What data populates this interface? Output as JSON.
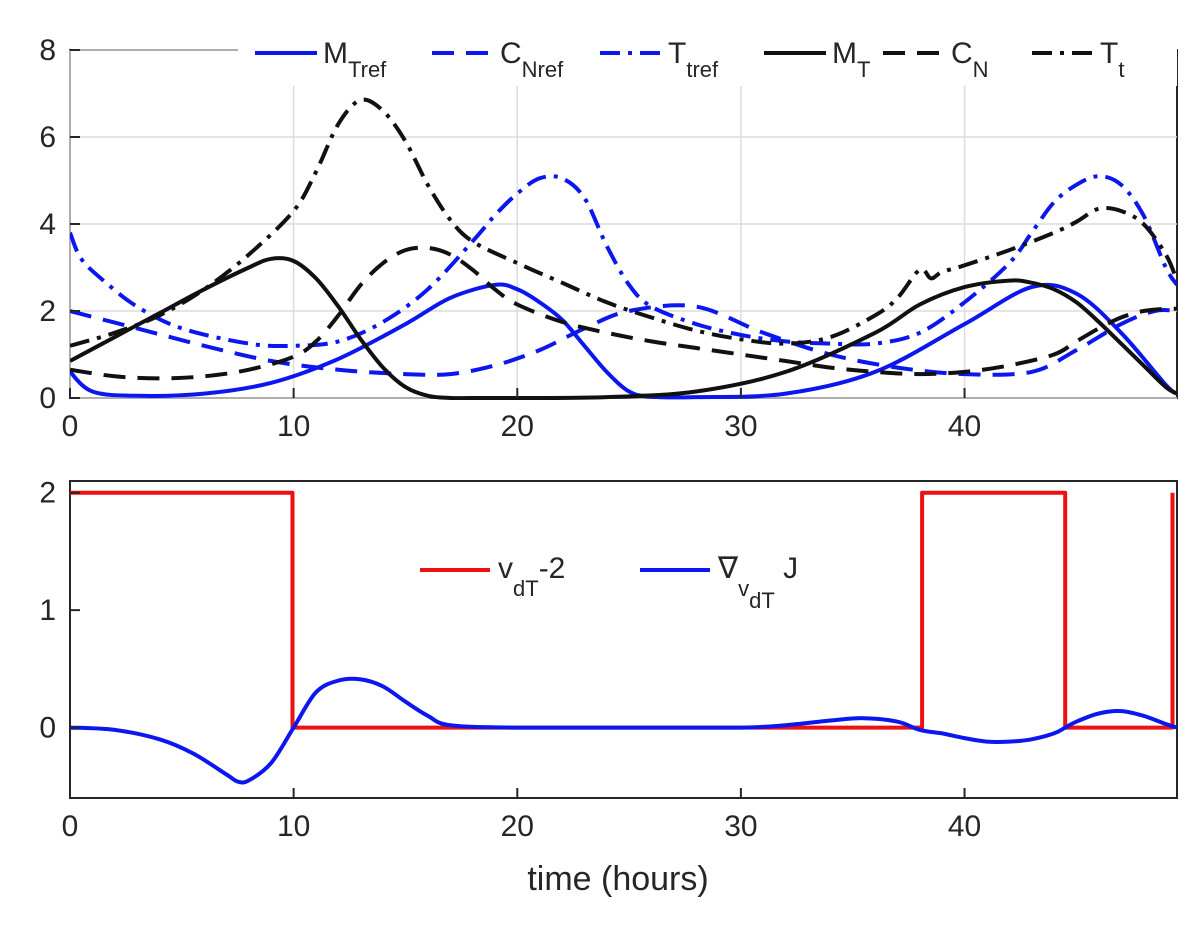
{
  "chart_data": [
    {
      "type": "line",
      "xlim": [
        0,
        49.5
      ],
      "ylim": [
        0,
        8
      ],
      "xticks": [
        0,
        10,
        20,
        30,
        40
      ],
      "yticks": [
        0,
        2,
        4,
        6,
        8
      ],
      "grid": true,
      "legend_placement": "top",
      "series": [
        {
          "name": "M",
          "sub": "Tref",
          "color": "#0b17ee",
          "dash": "solid",
          "x": [
            0,
            1,
            3,
            6,
            9,
            12,
            15,
            17,
            19,
            20,
            21,
            22,
            23,
            24,
            25,
            26,
            28,
            32,
            36,
            40,
            43,
            45,
            47,
            49,
            49.5
          ],
          "y": [
            0.6,
            0.15,
            0.05,
            0.1,
            0.35,
            0.9,
            1.7,
            2.3,
            2.6,
            2.5,
            2.2,
            1.8,
            1.2,
            0.6,
            0.15,
            0.03,
            0.02,
            0.1,
            0.6,
            1.7,
            2.55,
            2.4,
            1.5,
            0.3,
            0.1
          ]
        },
        {
          "name": "C",
          "sub": "Nref",
          "color": "#0b17ee",
          "dash": "dash",
          "x": [
            0,
            3,
            6,
            9,
            12,
            15,
            17,
            19,
            21,
            23,
            25,
            28,
            31,
            34,
            37,
            40,
            43,
            45,
            47,
            48.5,
            49.5
          ],
          "y": [
            2.0,
            1.6,
            1.2,
            0.85,
            0.65,
            0.55,
            0.55,
            0.75,
            1.1,
            1.6,
            2.0,
            2.1,
            1.5,
            1.0,
            0.7,
            0.55,
            0.6,
            1.1,
            1.7,
            2.0,
            2.0
          ]
        },
        {
          "name": "T",
          "sub": "tref",
          "color": "#0b17ee",
          "dash": "dashdot",
          "x": [
            0,
            0.5,
            1.5,
            3,
            5,
            8,
            10,
            12,
            14,
            16,
            18,
            19,
            20,
            21,
            22,
            23,
            24,
            25,
            26,
            28,
            30,
            32,
            34,
            36,
            38,
            40,
            42,
            43,
            44,
            45,
            46,
            47,
            48,
            49,
            49.5
          ],
          "y": [
            3.8,
            3.2,
            2.7,
            2.1,
            1.6,
            1.25,
            1.2,
            1.3,
            1.75,
            2.5,
            3.6,
            4.2,
            4.7,
            5.05,
            5.05,
            4.6,
            3.5,
            2.6,
            2.1,
            1.7,
            1.45,
            1.3,
            1.25,
            1.25,
            1.5,
            2.2,
            3.1,
            3.8,
            4.5,
            4.9,
            5.1,
            4.9,
            4.2,
            3.0,
            2.6
          ]
        },
        {
          "name": "M",
          "sub": "T",
          "color": "#111111",
          "dash": "solid",
          "x": [
            0,
            2,
            4,
            6,
            8,
            9,
            10,
            11,
            12,
            13,
            14,
            15,
            16,
            17,
            18,
            20,
            24,
            28,
            32,
            36,
            38,
            40,
            42,
            43,
            44,
            45,
            46,
            47,
            48,
            49,
            49.5
          ],
          "y": [
            0.85,
            1.4,
            1.95,
            2.5,
            3.0,
            3.2,
            3.15,
            2.75,
            2.1,
            1.35,
            0.7,
            0.25,
            0.05,
            0.0,
            0.0,
            0.0,
            0.02,
            0.15,
            0.6,
            1.5,
            2.15,
            2.55,
            2.7,
            2.65,
            2.5,
            2.2,
            1.75,
            1.25,
            0.75,
            0.25,
            0.1
          ]
        },
        {
          "name": "C",
          "sub": "N",
          "color": "#111111",
          "dash": "dash",
          "x": [
            0,
            2,
            4,
            6,
            8,
            10,
            11,
            12,
            13,
            14,
            15,
            16,
            17,
            18,
            19,
            20,
            22,
            24,
            26,
            28,
            30,
            32,
            34,
            36,
            38,
            40,
            42,
            44,
            45,
            46,
            47,
            48,
            49,
            49.5
          ],
          "y": [
            0.65,
            0.5,
            0.45,
            0.5,
            0.65,
            0.95,
            1.3,
            1.9,
            2.6,
            3.1,
            3.4,
            3.45,
            3.3,
            2.95,
            2.5,
            2.15,
            1.75,
            1.5,
            1.3,
            1.15,
            1.0,
            0.85,
            0.7,
            0.6,
            0.55,
            0.6,
            0.75,
            1.0,
            1.3,
            1.6,
            1.85,
            2.0,
            2.05,
            2.05
          ]
        },
        {
          "name": "T",
          "sub": "t",
          "color": "#111111",
          "dash": "dashdot",
          "x": [
            0,
            2,
            4,
            6,
            8,
            10,
            11,
            12,
            13,
            14,
            15,
            16,
            17,
            18,
            20,
            22,
            24,
            26,
            28,
            30,
            32,
            34,
            36,
            37,
            38,
            38.5,
            39,
            40,
            42,
            44,
            45,
            46,
            47,
            48,
            49,
            49.5
          ],
          "y": [
            1.2,
            1.5,
            1.9,
            2.5,
            3.3,
            4.3,
            5.2,
            6.3,
            6.85,
            6.6,
            5.9,
            4.9,
            4.1,
            3.6,
            3.1,
            2.65,
            2.2,
            1.85,
            1.55,
            1.35,
            1.25,
            1.4,
            1.9,
            2.3,
            2.95,
            2.75,
            2.9,
            3.05,
            3.4,
            3.8,
            4.05,
            4.35,
            4.3,
            4.0,
            3.3,
            2.7
          ]
        }
      ]
    },
    {
      "type": "line",
      "xlim": [
        0,
        49.5
      ],
      "ylim": [
        -0.6,
        2.1
      ],
      "xticks": [
        0,
        10,
        20,
        30,
        40
      ],
      "yticks": [
        0,
        1,
        2
      ],
      "xlabel": "time (hours)",
      "grid": false,
      "legend_placement": "center",
      "series": [
        {
          "label": "v",
          "sub": "dT",
          "suffix": "-2",
          "color": "#ee1111",
          "dash": "solid",
          "step": true,
          "x": [
            0,
            9.95,
            9.95,
            38.1,
            38.1,
            44.5,
            44.5,
            49.3,
            49.3
          ],
          "y": [
            2,
            2,
            0,
            0,
            2,
            2,
            0,
            0,
            2
          ]
        },
        {
          "label": "∇",
          "sub": "v",
          "subsub": "dT",
          "suffix": "J",
          "color": "#0b17ee",
          "dash": "solid",
          "x": [
            0,
            2,
            4,
            5.5,
            7,
            7.5,
            8,
            9,
            10,
            11,
            12,
            13,
            14,
            15,
            16,
            17,
            20,
            25,
            30,
            32,
            34,
            35.5,
            37,
            38,
            39,
            40,
            41,
            42,
            43,
            44,
            44.5,
            45,
            46,
            47,
            48,
            49,
            49.5
          ],
          "y": [
            0,
            -0.02,
            -0.1,
            -0.22,
            -0.4,
            -0.46,
            -0.45,
            -0.3,
            0,
            0.3,
            0.4,
            0.41,
            0.35,
            0.22,
            0.1,
            0.02,
            0,
            0,
            0,
            0.02,
            0.06,
            0.08,
            0.05,
            -0.02,
            -0.05,
            -0.09,
            -0.12,
            -0.12,
            -0.1,
            -0.05,
            0,
            0.05,
            0.12,
            0.14,
            0.1,
            0.03,
            0
          ]
        }
      ]
    }
  ]
}
